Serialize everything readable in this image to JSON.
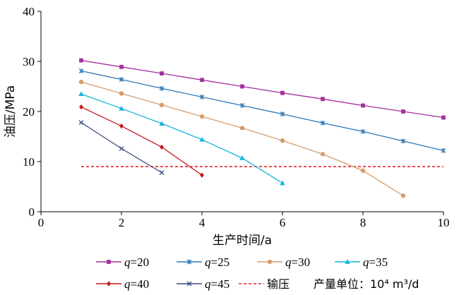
{
  "chart_data": {
    "type": "line",
    "xlabel": "生产时间/a",
    "ylabel": "油压/MPa",
    "xlim": [
      0,
      10
    ],
    "ylim": [
      0,
      40
    ],
    "xticks": [
      "0",
      "2",
      "4",
      "6",
      "8",
      "10"
    ],
    "yticks": [
      "0",
      "10",
      "20",
      "30",
      "40"
    ],
    "grid": false,
    "legend_position": "bottom",
    "series": [
      {
        "name": "q=20",
        "q_value": "20",
        "color": "#a2309a",
        "marker": "square",
        "x": [
          1,
          2,
          3,
          4,
          5,
          6,
          7,
          8,
          9,
          10
        ],
        "y": [
          30.2,
          28.9,
          27.6,
          26.3,
          25.0,
          23.7,
          22.5,
          21.2,
          20.0,
          18.8
        ]
      },
      {
        "name": "q=25",
        "q_value": "25",
        "color": "#2e78b6",
        "marker": "star",
        "x": [
          1,
          2,
          3,
          4,
          5,
          6,
          7,
          8,
          9,
          10
        ],
        "y": [
          28.1,
          26.4,
          24.6,
          22.9,
          21.2,
          19.5,
          17.7,
          16.0,
          14.1,
          12.2
        ]
      },
      {
        "name": "q=30",
        "q_value": "30",
        "color": "#d79c6b",
        "marker": "circle",
        "x": [
          1,
          2,
          3,
          4,
          5,
          6,
          7,
          8,
          9
        ],
        "y": [
          25.9,
          23.6,
          21.3,
          19.0,
          16.7,
          14.2,
          11.5,
          8.2,
          3.2
        ]
      },
      {
        "name": "q=35",
        "q_value": "35",
        "color": "#14b5dc",
        "marker": "triangle",
        "x": [
          1,
          2,
          3,
          4,
          5,
          6
        ],
        "y": [
          23.5,
          20.6,
          17.6,
          14.4,
          10.7,
          5.7
        ]
      },
      {
        "name": "q=40",
        "q_value": "40",
        "color": "#c4161c",
        "marker": "diamond",
        "x": [
          1,
          2,
          3,
          4
        ],
        "y": [
          20.9,
          17.1,
          12.9,
          7.3
        ]
      },
      {
        "name": "q=45",
        "q_value": "45",
        "color": "#3a4f7a",
        "marker": "x",
        "x": [
          1,
          2,
          3
        ],
        "y": [
          17.8,
          12.6,
          7.8
        ]
      }
    ],
    "reference_line": {
      "name": "输压",
      "y": 9.0,
      "color": "#e8232a",
      "style": "dashed"
    },
    "unit_note": "产量单位：10⁴ m³/d"
  }
}
